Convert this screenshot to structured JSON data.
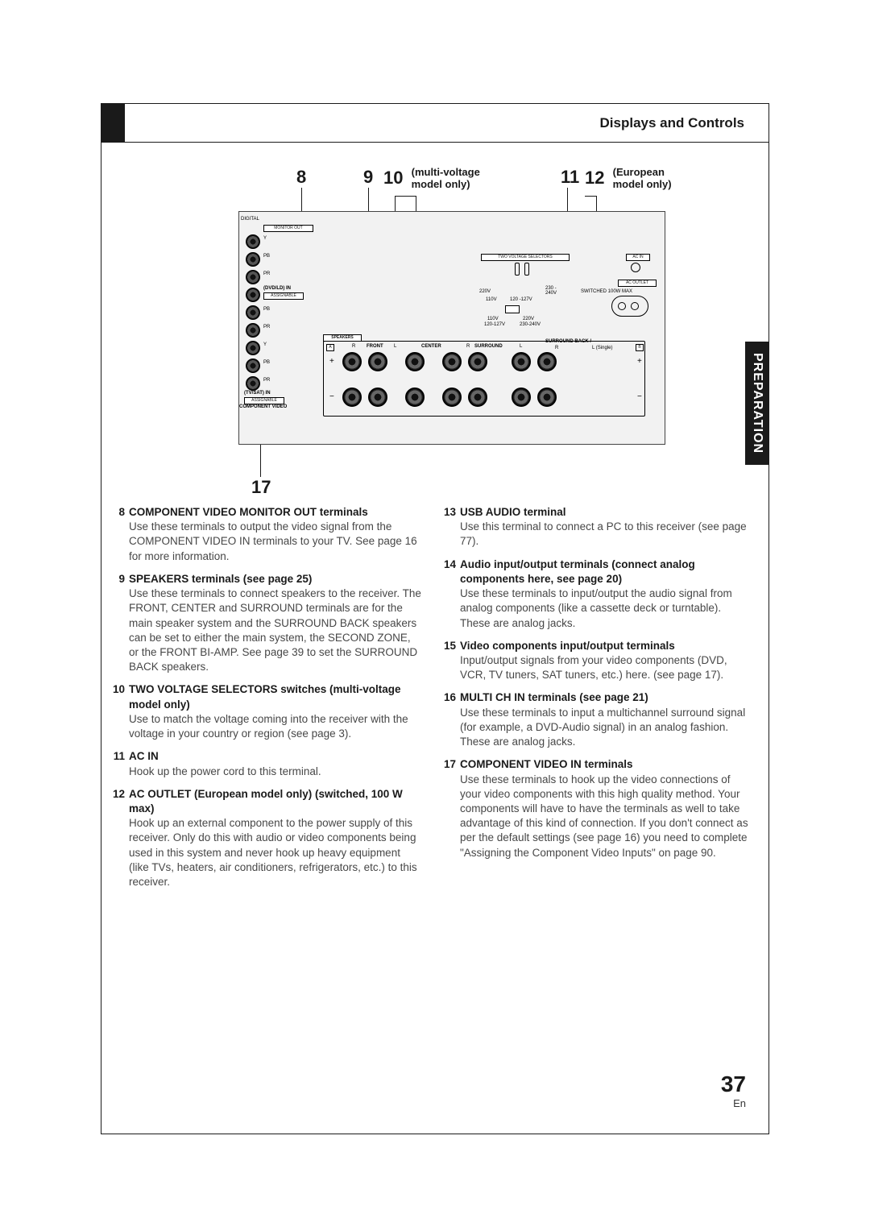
{
  "header": {
    "title": "Displays and Controls"
  },
  "side_tab": "PREPARATION",
  "page_number": "37",
  "page_lang": "En",
  "callouts": {
    "c8": "8",
    "c9": "9",
    "c10": "10",
    "c10_sub1": "(multi-voltage",
    "c10_sub2": "model only)",
    "c11": "11",
    "c12": "12",
    "c12_sub1": "(European",
    "c12_sub2": "model only)",
    "c17": "17"
  },
  "diagram": {
    "digital": "DIGITAL",
    "monitor_out": "MONITOR OUT",
    "y": "Y",
    "pb": "PB",
    "pr": "PR",
    "dvd_in": "(DVD/LD) IN",
    "assignable": "ASSIGNABLE",
    "tvsat_in": "(TV/SAT) IN",
    "component_video": "COMPONENT VIDEO",
    "speakers": "SPEAKERS",
    "a": "A",
    "b": "B",
    "front": "FRONT",
    "center": "CENTER",
    "surround": "SURROUND",
    "surround_back": "SURROUND BACK /",
    "r": "R",
    "l": "L",
    "l_single": "L (Single)",
    "two_voltage": "TWO VOLTAGE SELECTORS",
    "ac_in": "AC IN",
    "ac_outlet": "AC OUTLET",
    "switched": "SWITCHED 100W MAX",
    "v220": "220V",
    "v230_240": "230 -\n240V",
    "v110": "110V",
    "v120_127": "120 -127V",
    "v110b": "110V",
    "v120_127b": "120-127V",
    "v220b": "220V",
    "v230_240b": "230-240V",
    "plus": "+",
    "minus": "−"
  },
  "left_items": [
    {
      "num": "8",
      "title": "COMPONENT VIDEO MONITOR OUT terminals",
      "desc": "Use these terminals to output the video signal from the COMPONENT VIDEO IN terminals to your TV. See page 16 for more information."
    },
    {
      "num": "9",
      "title": "SPEAKERS terminals (see page 25)",
      "desc": "Use these terminals to connect speakers to the receiver. The FRONT, CENTER and SURROUND terminals are for the main speaker system and the SURROUND BACK speakers can be set to either the main system, the SECOND ZONE, or the FRONT BI-AMP. See page 39 to set the SURROUND BACK speakers."
    },
    {
      "num": "10",
      "title": "TWO VOLTAGE SELECTORS switches (multi-voltage model only)",
      "desc": "Use to match the voltage coming into the receiver with the voltage in your country or region (see page 3)."
    },
    {
      "num": "11",
      "title": "AC IN",
      "desc": "Hook up the power cord to this terminal."
    },
    {
      "num": "12",
      "title": "AC OUTLET (European model only) (switched, 100 W max)",
      "desc": "Hook up an external component to the power supply of this receiver. Only do this with audio or video components being used in this system and never hook up heavy equipment (like TVs, heaters, air conditioners, refrigerators, etc.) to this receiver."
    }
  ],
  "right_items": [
    {
      "num": "13",
      "title": "USB AUDIO terminal",
      "desc": "Use this terminal to connect a PC to this receiver (see page 77)."
    },
    {
      "num": "14",
      "title": "Audio input/output terminals (connect analog components here, see page 20)",
      "desc": "Use these terminals to input/output the audio signal from analog components (like a cassette deck or turntable). These are analog jacks."
    },
    {
      "num": "15",
      "title": "Video components input/output terminals",
      "desc": "Input/output signals from your video components (DVD, VCR, TV tuners, SAT tuners, etc.) here. (see page 17)."
    },
    {
      "num": "16",
      "title": "MULTI CH IN terminals (see page 21)",
      "desc": "Use these terminals to input a multichannel surround signal (for example, a DVD-Audio signal) in an analog fashion. These are analog jacks."
    },
    {
      "num": "17",
      "title": "COMPONENT VIDEO IN terminals",
      "desc": "Use these terminals to hook up the video connections of your video components with this high quality method. Your components will have to have the terminals as well to take advantage of this kind of connection. If you don't connect as per the default settings (see page 16) you need to complete \"Assigning the Component Video Inputs\" on page 90."
    }
  ]
}
